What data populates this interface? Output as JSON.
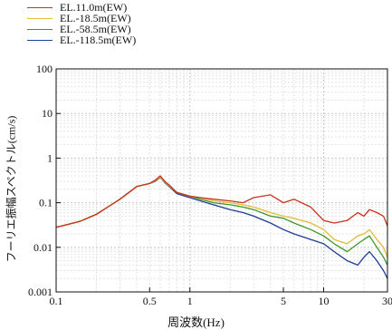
{
  "chart_data": {
    "type": "line",
    "xscale": "log",
    "yscale": "log",
    "xlim": [
      0.1,
      30
    ],
    "ylim": [
      0.001,
      100
    ],
    "xlabel": "周波数(Hz)",
    "ylabel": "フーリエ振幅スペクトル(cm/s)",
    "xticks": [
      0.1,
      0.5,
      1,
      5,
      10,
      30
    ],
    "xtick_labels": [
      "0.1",
      "0.5",
      "1",
      "5",
      "10",
      "30"
    ],
    "yticks": [
      0.001,
      0.01,
      0.1,
      1,
      10,
      100
    ],
    "ytick_labels": [
      "0.001",
      "0.01",
      "0.1",
      "1",
      "10",
      "100"
    ],
    "grid": true,
    "legend_position": "top-left",
    "series": [
      {
        "name": "EL.11.0m(EW)",
        "color": "#c8321e",
        "x": [
          0.1,
          0.15,
          0.2,
          0.3,
          0.4,
          0.5,
          0.55,
          0.6,
          0.65,
          0.7,
          0.8,
          1.0,
          1.2,
          1.5,
          2.0,
          2.5,
          3.0,
          4.0,
          5.0,
          6.0,
          8.0,
          10.0,
          12.0,
          15.0,
          18.0,
          20.0,
          22.0,
          25.0,
          28.0,
          30.0
        ],
        "y": [
          0.028,
          0.038,
          0.055,
          0.12,
          0.23,
          0.27,
          0.32,
          0.4,
          0.3,
          0.25,
          0.17,
          0.14,
          0.13,
          0.12,
          0.11,
          0.1,
          0.13,
          0.15,
          0.1,
          0.12,
          0.08,
          0.04,
          0.035,
          0.04,
          0.06,
          0.05,
          0.07,
          0.06,
          0.05,
          0.03
        ]
      },
      {
        "name": "EL.-18.5m(EW)",
        "color": "#e8b838",
        "x": [
          0.1,
          0.15,
          0.2,
          0.3,
          0.4,
          0.5,
          0.55,
          0.6,
          0.65,
          0.7,
          0.8,
          1.0,
          1.2,
          1.5,
          2.0,
          2.5,
          3.0,
          4.0,
          5.0,
          6.0,
          8.0,
          10.0,
          12.0,
          15.0,
          18.0,
          20.0,
          22.0,
          25.0,
          28.0,
          30.0
        ],
        "y": [
          0.028,
          0.038,
          0.055,
          0.12,
          0.23,
          0.27,
          0.31,
          0.38,
          0.29,
          0.24,
          0.17,
          0.14,
          0.13,
          0.11,
          0.1,
          0.09,
          0.08,
          0.06,
          0.05,
          0.045,
          0.035,
          0.025,
          0.015,
          0.012,
          0.018,
          0.02,
          0.025,
          0.015,
          0.01,
          0.006
        ]
      },
      {
        "name": "EL.-58.5m(EW)",
        "color": "#3c9628",
        "x": [
          0.1,
          0.15,
          0.2,
          0.3,
          0.4,
          0.5,
          0.55,
          0.6,
          0.65,
          0.7,
          0.8,
          1.0,
          1.2,
          1.5,
          2.0,
          2.5,
          3.0,
          4.0,
          5.0,
          6.0,
          8.0,
          10.0,
          12.0,
          15.0,
          18.0,
          20.0,
          22.0,
          25.0,
          28.0,
          30.0
        ],
        "y": [
          0.028,
          0.038,
          0.055,
          0.12,
          0.23,
          0.27,
          0.31,
          0.38,
          0.29,
          0.24,
          0.17,
          0.14,
          0.12,
          0.1,
          0.09,
          0.08,
          0.07,
          0.05,
          0.045,
          0.035,
          0.025,
          0.018,
          0.012,
          0.008,
          0.012,
          0.015,
          0.018,
          0.01,
          0.006,
          0.004
        ]
      },
      {
        "name": "EL.-118.5m(EW)",
        "color": "#1e3c96",
        "x": [
          0.1,
          0.15,
          0.2,
          0.3,
          0.4,
          0.5,
          0.55,
          0.6,
          0.65,
          0.7,
          0.8,
          1.0,
          1.2,
          1.5,
          2.0,
          2.5,
          3.0,
          4.0,
          5.0,
          6.0,
          8.0,
          10.0,
          12.0,
          15.0,
          18.0,
          20.0,
          22.0,
          25.0,
          28.0,
          30.0
        ],
        "y": [
          0.028,
          0.038,
          0.055,
          0.12,
          0.23,
          0.27,
          0.3,
          0.37,
          0.28,
          0.23,
          0.16,
          0.13,
          0.11,
          0.09,
          0.07,
          0.06,
          0.05,
          0.035,
          0.025,
          0.02,
          0.015,
          0.012,
          0.008,
          0.005,
          0.004,
          0.006,
          0.008,
          0.005,
          0.003,
          0.002
        ]
      }
    ]
  }
}
